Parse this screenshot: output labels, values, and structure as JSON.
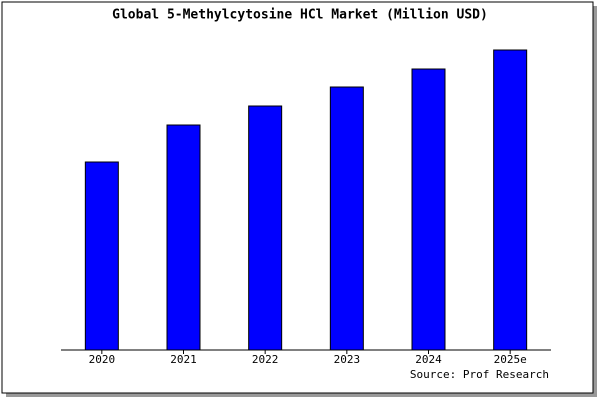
{
  "chart_data": {
    "type": "bar",
    "title": "Global 5-Methylcytosine HCl Market (Million USD)",
    "categories": [
      "2020",
      "2021",
      "2022",
      "2023",
      "2024",
      "2025e"
    ],
    "values": [
      188,
      225,
      244,
      263,
      281,
      300
    ],
    "color": "#0000ff",
    "ylim": [
      0,
      305
    ],
    "source": "Source: Prof Research"
  }
}
